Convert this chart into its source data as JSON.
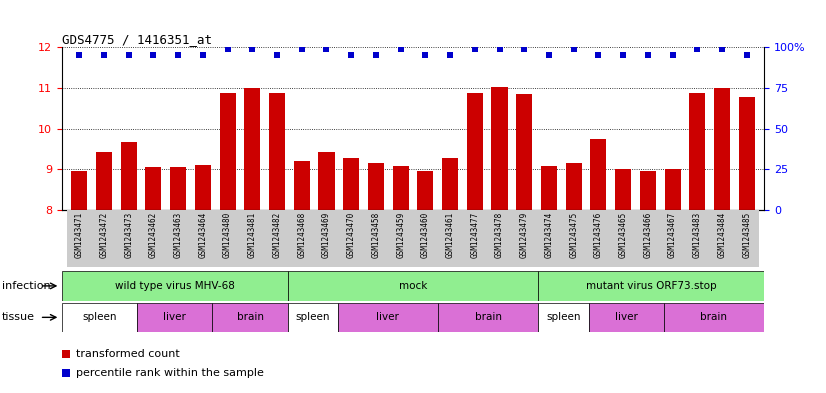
{
  "title": "GDS4775 / 1416351_at",
  "samples": [
    "GSM1243471",
    "GSM1243472",
    "GSM1243473",
    "GSM1243462",
    "GSM1243463",
    "GSM1243464",
    "GSM1243480",
    "GSM1243481",
    "GSM1243482",
    "GSM1243468",
    "GSM1243469",
    "GSM1243470",
    "GSM1243458",
    "GSM1243459",
    "GSM1243460",
    "GSM1243461",
    "GSM1243477",
    "GSM1243478",
    "GSM1243479",
    "GSM1243474",
    "GSM1243475",
    "GSM1243476",
    "GSM1243465",
    "GSM1243466",
    "GSM1243467",
    "GSM1243483",
    "GSM1243484",
    "GSM1243485"
  ],
  "bar_values": [
    8.97,
    9.42,
    9.68,
    9.05,
    9.05,
    9.12,
    10.87,
    11.0,
    10.87,
    9.22,
    9.42,
    9.28,
    9.15,
    9.08,
    8.97,
    9.28,
    10.87,
    11.02,
    10.85,
    9.08,
    9.15,
    9.75,
    9.02,
    8.97,
    9.0,
    10.87,
    11.0,
    10.78
  ],
  "percentile_values": [
    95,
    95,
    95,
    95,
    95,
    95,
    99,
    99,
    95,
    99,
    99,
    95,
    95,
    99,
    95,
    95,
    99,
    99,
    99,
    95,
    99,
    95,
    95,
    95,
    95,
    99,
    99,
    95
  ],
  "bar_color": "#cc0000",
  "dot_color": "#0000cc",
  "ylim_left": [
    8.0,
    12.0
  ],
  "ylim_right": [
    0,
    100
  ],
  "yticks_left": [
    8,
    9,
    10,
    11,
    12
  ],
  "yticks_right": [
    0,
    25,
    50,
    75,
    100
  ],
  "yticklabels_right": [
    "0",
    "25",
    "50",
    "75",
    "100%"
  ],
  "infection_groups": [
    {
      "label": "wild type virus MHV-68",
      "start": 0,
      "end": 9
    },
    {
      "label": "mock",
      "start": 9,
      "end": 19
    },
    {
      "label": "mutant virus ORF73.stop",
      "start": 19,
      "end": 28
    }
  ],
  "tissue_groups": [
    {
      "label": "spleen",
      "start": 0,
      "end": 3,
      "color": "#ffffff"
    },
    {
      "label": "liver",
      "start": 3,
      "end": 6,
      "color": "#da70d6"
    },
    {
      "label": "brain",
      "start": 6,
      "end": 9,
      "color": "#da70d6"
    },
    {
      "label": "spleen",
      "start": 9,
      "end": 11,
      "color": "#ffffff"
    },
    {
      "label": "liver",
      "start": 11,
      "end": 15,
      "color": "#da70d6"
    },
    {
      "label": "brain",
      "start": 15,
      "end": 19,
      "color": "#da70d6"
    },
    {
      "label": "spleen",
      "start": 19,
      "end": 21,
      "color": "#ffffff"
    },
    {
      "label": "liver",
      "start": 21,
      "end": 24,
      "color": "#da70d6"
    },
    {
      "label": "brain",
      "start": 24,
      "end": 28,
      "color": "#da70d6"
    }
  ],
  "infection_color": "#90ee90",
  "bg_color": "#ffffff"
}
